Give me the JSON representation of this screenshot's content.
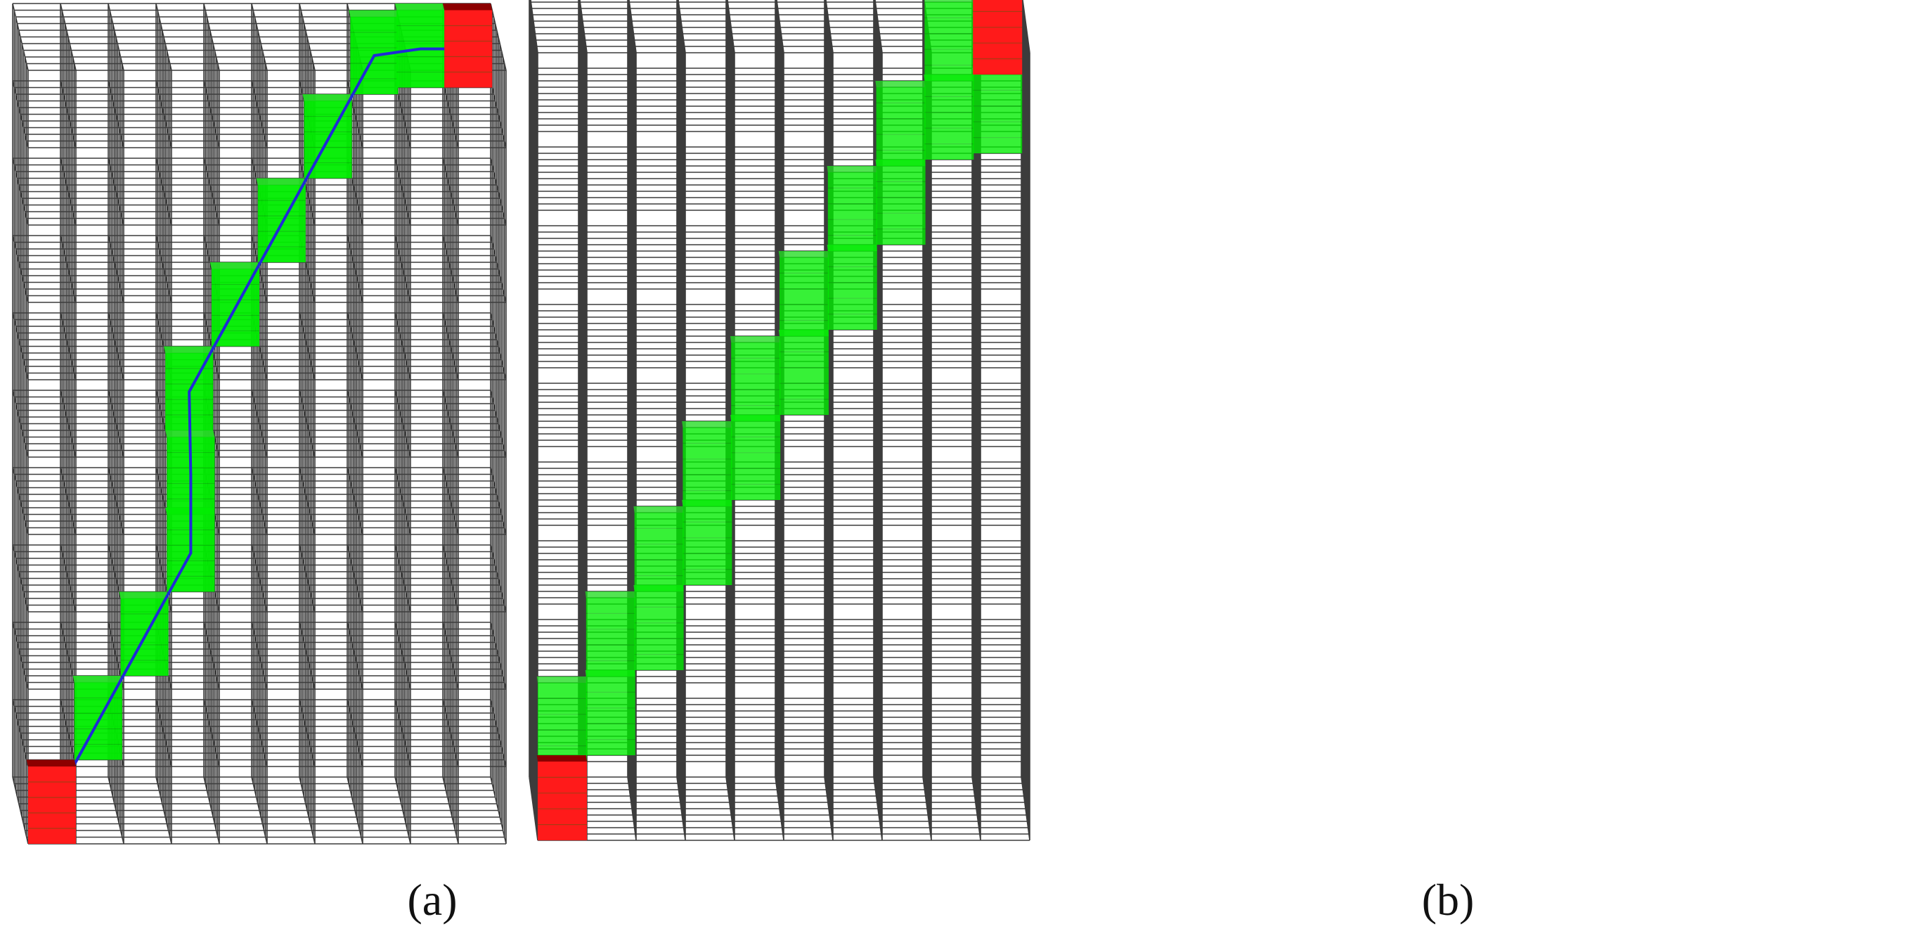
{
  "colors": {
    "background": "#ffffff",
    "grid_line": "#1a1a1a",
    "path_cell": "#00ee00",
    "endpoint_cell": "#ff1a1a",
    "endpoint_shade": "#8b0000",
    "path_line": "#1f2bd6"
  },
  "panels": [
    {
      "caption": "(a)",
      "grid_size": [
        10,
        10,
        10
      ],
      "endpoints": [
        [
          0,
          0,
          0
        ],
        [
          9,
          9,
          9
        ]
      ],
      "path_cells": [
        [
          1,
          1,
          1
        ],
        [
          2,
          2,
          2
        ],
        [
          3,
          3,
          3
        ],
        [
          3,
          4,
          3
        ],
        [
          3,
          5,
          4
        ],
        [
          4,
          6,
          5
        ],
        [
          5,
          7,
          6
        ],
        [
          6,
          8,
          7
        ],
        [
          7,
          9,
          8
        ],
        [
          8,
          9,
          9
        ]
      ],
      "has_connecting_line": true
    },
    {
      "caption": "(b)",
      "grid_size": [
        10,
        10,
        10
      ],
      "endpoints": [
        [
          0,
          0,
          0
        ],
        [
          9,
          9,
          9
        ]
      ],
      "path_cells": [
        [
          0,
          1,
          0
        ],
        [
          1,
          1,
          1
        ],
        [
          1,
          2,
          1
        ],
        [
          2,
          2,
          2
        ],
        [
          2,
          3,
          2
        ],
        [
          3,
          3,
          3
        ],
        [
          3,
          4,
          3
        ],
        [
          4,
          4,
          4
        ],
        [
          4,
          5,
          4
        ],
        [
          5,
          5,
          5
        ],
        [
          5,
          6,
          5
        ],
        [
          6,
          6,
          6
        ],
        [
          6,
          7,
          6
        ],
        [
          7,
          7,
          7
        ],
        [
          7,
          8,
          7
        ],
        [
          8,
          8,
          8
        ],
        [
          8,
          9,
          8
        ],
        [
          9,
          8,
          9
        ]
      ],
      "has_connecting_line": false
    }
  ]
}
